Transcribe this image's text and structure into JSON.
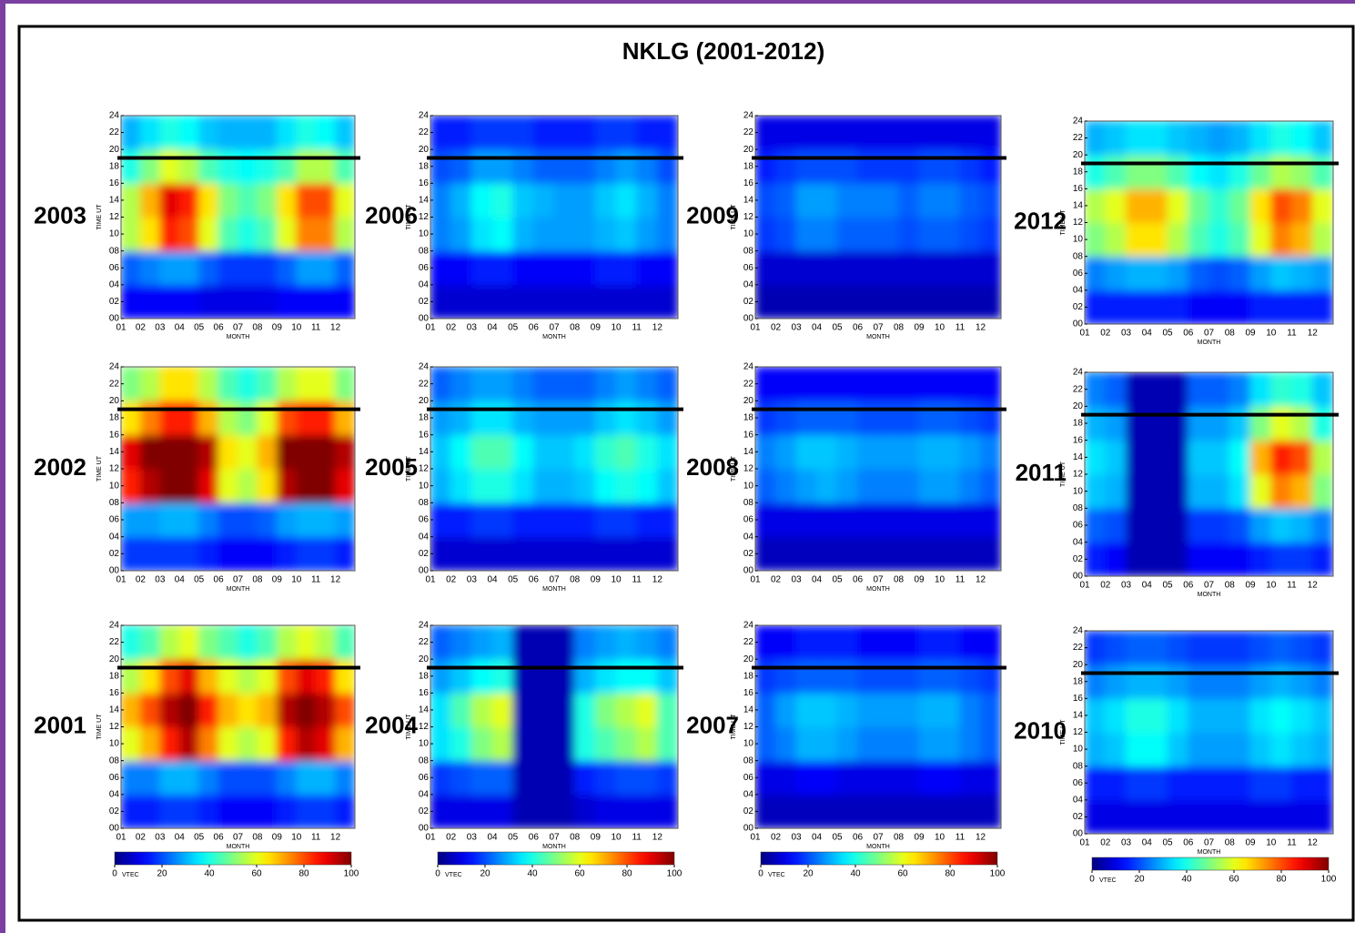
{
  "chart_data": {
    "type": "heatmap-grid",
    "title": "NKLG (2001-2012)",
    "y_label": "TIME UT",
    "x_label": "MONTH",
    "categories": [
      "01",
      "02",
      "03",
      "04",
      "05",
      "06",
      "07",
      "08",
      "09",
      "10",
      "11",
      "12"
    ],
    "ylim": [
      0,
      24
    ],
    "yticks": [
      {
        "value": 0,
        "label": "00"
      },
      {
        "value": 2,
        "label": "02"
      },
      {
        "value": 4,
        "label": "04"
      },
      {
        "value": 6,
        "label": "06"
      },
      {
        "value": 8,
        "label": "08"
      },
      {
        "value": 10,
        "label": "10"
      },
      {
        "value": 12,
        "label": "12"
      },
      {
        "value": 14,
        "label": "14"
      },
      {
        "value": 16,
        "label": "16"
      },
      {
        "value": 18,
        "label": "18"
      },
      {
        "value": 20,
        "label": "20"
      },
      {
        "value": 22,
        "label": "22"
      },
      {
        "value": 24,
        "label": "24"
      }
    ],
    "bins": [
      0,
      4,
      8,
      12,
      16,
      20,
      24
    ],
    "reference_line": 19,
    "colorbar": {
      "label": "VTEC",
      "lim": [
        0,
        100
      ],
      "ticks": [
        0,
        20,
        40,
        60,
        80,
        100
      ]
    },
    "panels": [
      {
        "label": "2003",
        "values": [
          [
            12,
            12,
            12,
            12,
            10,
            10,
            10,
            10,
            12,
            12,
            12,
            12
          ],
          [
            22,
            25,
            28,
            28,
            22,
            18,
            18,
            18,
            22,
            28,
            28,
            22
          ],
          [
            55,
            65,
            85,
            80,
            60,
            45,
            40,
            45,
            60,
            75,
            75,
            55
          ],
          [
            55,
            70,
            90,
            85,
            65,
            50,
            45,
            50,
            65,
            80,
            80,
            60
          ],
          [
            40,
            50,
            60,
            55,
            45,
            40,
            38,
            40,
            45,
            55,
            55,
            45
          ],
          [
            30,
            35,
            40,
            38,
            32,
            30,
            30,
            30,
            35,
            40,
            38,
            32
          ]
        ]
      },
      {
        "label": "2006",
        "values": [
          [
            8,
            8,
            8,
            8,
            8,
            8,
            8,
            8,
            8,
            8,
            8,
            8
          ],
          [
            12,
            12,
            15,
            15,
            12,
            12,
            12,
            12,
            15,
            15,
            12,
            12
          ],
          [
            25,
            28,
            35,
            38,
            30,
            28,
            28,
            28,
            30,
            32,
            28,
            25
          ],
          [
            25,
            30,
            38,
            40,
            32,
            30,
            28,
            28,
            32,
            35,
            30,
            25
          ],
          [
            20,
            22,
            28,
            28,
            25,
            22,
            22,
            22,
            25,
            28,
            25,
            20
          ],
          [
            15,
            15,
            18,
            18,
            18,
            15,
            15,
            15,
            18,
            18,
            15,
            15
          ]
        ]
      },
      {
        "label": "2009",
        "values": [
          [
            5,
            5,
            5,
            5,
            5,
            5,
            5,
            5,
            5,
            5,
            5,
            5
          ],
          [
            8,
            8,
            8,
            8,
            8,
            8,
            8,
            8,
            8,
            8,
            8,
            8
          ],
          [
            18,
            20,
            25,
            25,
            22,
            22,
            22,
            20,
            22,
            22,
            20,
            18
          ],
          [
            20,
            22,
            28,
            28,
            25,
            25,
            25,
            22,
            25,
            25,
            22,
            20
          ],
          [
            15,
            18,
            20,
            20,
            20,
            18,
            18,
            18,
            20,
            20,
            18,
            15
          ],
          [
            10,
            10,
            10,
            10,
            10,
            10,
            10,
            10,
            10,
            10,
            10,
            10
          ]
        ]
      },
      {
        "label": "2012",
        "values": [
          [
            15,
            15,
            15,
            15,
            15,
            12,
            12,
            12,
            15,
            15,
            15,
            15
          ],
          [
            25,
            28,
            30,
            30,
            28,
            22,
            20,
            22,
            28,
            32,
            30,
            28
          ],
          [
            50,
            55,
            65,
            65,
            55,
            45,
            40,
            45,
            60,
            75,
            70,
            55
          ],
          [
            55,
            60,
            70,
            70,
            60,
            48,
            42,
            48,
            65,
            80,
            75,
            60
          ],
          [
            40,
            45,
            50,
            50,
            45,
            38,
            35,
            40,
            48,
            55,
            52,
            45
          ],
          [
            30,
            32,
            35,
            35,
            32,
            30,
            28,
            30,
            35,
            40,
            38,
            32
          ]
        ]
      },
      {
        "label": "2002",
        "values": [
          [
            18,
            18,
            18,
            18,
            15,
            12,
            12,
            12,
            15,
            18,
            18,
            15
          ],
          [
            28,
            28,
            30,
            30,
            25,
            20,
            20,
            22,
            28,
            30,
            30,
            28
          ],
          [
            85,
            95,
            100,
            100,
            90,
            60,
            55,
            65,
            95,
            100,
            100,
            90
          ],
          [
            90,
            100,
            100,
            100,
            95,
            65,
            60,
            70,
            100,
            100,
            100,
            95
          ],
          [
            65,
            75,
            85,
            85,
            70,
            55,
            50,
            60,
            80,
            85,
            85,
            70
          ],
          [
            50,
            55,
            65,
            65,
            55,
            45,
            40,
            45,
            55,
            60,
            60,
            50
          ]
        ]
      },
      {
        "label": "2005",
        "values": [
          [
            8,
            8,
            8,
            8,
            8,
            8,
            8,
            8,
            8,
            8,
            8,
            8
          ],
          [
            15,
            15,
            18,
            18,
            15,
            15,
            15,
            15,
            18,
            18,
            15,
            15
          ],
          [
            30,
            35,
            40,
            40,
            35,
            30,
            30,
            32,
            38,
            40,
            38,
            32
          ],
          [
            32,
            38,
            45,
            45,
            38,
            32,
            32,
            35,
            42,
            45,
            40,
            35
          ],
          [
            28,
            30,
            35,
            35,
            30,
            28,
            28,
            28,
            32,
            35,
            32,
            28
          ],
          [
            22,
            25,
            28,
            28,
            25,
            22,
            22,
            22,
            25,
            28,
            25,
            22
          ]
        ]
      },
      {
        "label": "2008",
        "values": [
          [
            6,
            6,
            6,
            6,
            6,
            6,
            6,
            6,
            6,
            6,
            6,
            6
          ],
          [
            10,
            10,
            10,
            10,
            10,
            10,
            10,
            10,
            10,
            10,
            10,
            10
          ],
          [
            22,
            25,
            28,
            30,
            28,
            25,
            25,
            25,
            28,
            28,
            25,
            22
          ],
          [
            25,
            28,
            32,
            32,
            30,
            28,
            28,
            28,
            30,
            30,
            28,
            25
          ],
          [
            18,
            20,
            22,
            22,
            22,
            20,
            20,
            20,
            22,
            22,
            20,
            18
          ],
          [
            12,
            12,
            12,
            12,
            12,
            12,
            12,
            12,
            12,
            12,
            12,
            12
          ]
        ]
      },
      {
        "label": "2011",
        "values": [
          [
            15,
            12,
            5,
            5,
            5,
            12,
            12,
            12,
            15,
            18,
            18,
            15
          ],
          [
            22,
            20,
            5,
            5,
            5,
            18,
            18,
            20,
            28,
            32,
            30,
            25
          ],
          [
            32,
            30,
            5,
            5,
            5,
            30,
            30,
            35,
            60,
            75,
            70,
            50
          ],
          [
            35,
            32,
            5,
            5,
            5,
            32,
            32,
            38,
            70,
            85,
            80,
            55
          ],
          [
            30,
            28,
            5,
            5,
            5,
            28,
            28,
            32,
            50,
            60,
            55,
            40
          ],
          [
            25,
            22,
            5,
            5,
            5,
            22,
            22,
            25,
            35,
            42,
            40,
            32
          ]
        ]
      },
      {
        "label": "2001",
        "values": [
          [
            15,
            15,
            18,
            18,
            15,
            12,
            12,
            12,
            15,
            18,
            18,
            15
          ],
          [
            25,
            25,
            30,
            30,
            25,
            20,
            20,
            20,
            25,
            30,
            30,
            25
          ],
          [
            60,
            70,
            85,
            95,
            75,
            60,
            55,
            60,
            85,
            95,
            90,
            70
          ],
          [
            70,
            80,
            95,
            100,
            85,
            70,
            65,
            70,
            95,
            100,
            95,
            80
          ],
          [
            55,
            65,
            80,
            90,
            70,
            60,
            55,
            60,
            80,
            90,
            85,
            65
          ],
          [
            40,
            45,
            55,
            60,
            50,
            45,
            40,
            45,
            55,
            60,
            55,
            45
          ]
        ]
      },
      {
        "label": "2004",
        "values": [
          [
            10,
            10,
            10,
            10,
            5,
            5,
            5,
            8,
            10,
            10,
            10,
            10
          ],
          [
            18,
            20,
            22,
            22,
            5,
            5,
            5,
            15,
            18,
            20,
            20,
            18
          ],
          [
            35,
            40,
            50,
            55,
            5,
            5,
            5,
            40,
            45,
            50,
            55,
            45
          ],
          [
            35,
            45,
            55,
            60,
            5,
            5,
            5,
            40,
            50,
            55,
            60,
            45
          ],
          [
            28,
            32,
            38,
            40,
            5,
            5,
            5,
            30,
            35,
            38,
            38,
            32
          ],
          [
            22,
            25,
            28,
            30,
            5,
            5,
            5,
            25,
            28,
            30,
            28,
            25
          ]
        ]
      },
      {
        "label": "2007",
        "values": [
          [
            6,
            6,
            6,
            6,
            6,
            6,
            6,
            6,
            6,
            6,
            6,
            6
          ],
          [
            10,
            10,
            12,
            12,
            10,
            10,
            10,
            10,
            12,
            12,
            10,
            10
          ],
          [
            22,
            25,
            30,
            30,
            28,
            25,
            25,
            25,
            28,
            28,
            25,
            22
          ],
          [
            22,
            28,
            32,
            32,
            30,
            28,
            28,
            28,
            30,
            30,
            25,
            22
          ],
          [
            18,
            20,
            22,
            22,
            22,
            20,
            20,
            20,
            22,
            22,
            20,
            18
          ],
          [
            12,
            12,
            15,
            15,
            15,
            12,
            12,
            12,
            15,
            15,
            12,
            12
          ]
        ]
      },
      {
        "label": "2010",
        "values": [
          [
            10,
            10,
            10,
            10,
            10,
            10,
            10,
            10,
            10,
            10,
            10,
            10
          ],
          [
            15,
            15,
            18,
            18,
            15,
            15,
            15,
            15,
            18,
            18,
            15,
            15
          ],
          [
            30,
            32,
            38,
            38,
            32,
            28,
            28,
            28,
            32,
            35,
            32,
            30
          ],
          [
            32,
            35,
            40,
            40,
            35,
            30,
            30,
            30,
            35,
            38,
            35,
            32
          ],
          [
            25,
            28,
            30,
            30,
            28,
            25,
            25,
            25,
            28,
            30,
            28,
            25
          ],
          [
            18,
            20,
            22,
            22,
            20,
            18,
            18,
            18,
            20,
            22,
            20,
            18
          ]
        ]
      }
    ]
  }
}
